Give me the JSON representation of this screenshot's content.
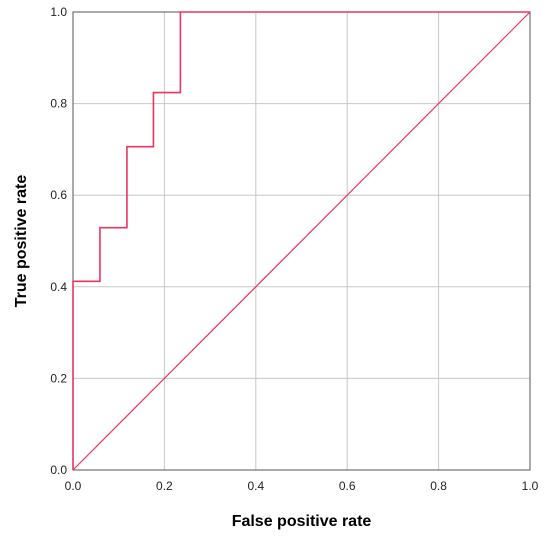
{
  "chart_data": {
    "type": "line",
    "xlabel": "False positive rate",
    "ylabel": "True positive rate",
    "xlim": [
      0,
      1
    ],
    "ylim": [
      0,
      1
    ],
    "x_ticks": [
      "0.0",
      "0.2",
      "0.4",
      "0.6",
      "0.8",
      "1.0"
    ],
    "y_ticks": [
      "0.0",
      "0.2",
      "0.4",
      "0.6",
      "0.8",
      "1.0"
    ],
    "grid": true,
    "series": [
      {
        "kind": "roc-step",
        "color": "#e8365d",
        "x": [
          0,
          0,
          0.059,
          0.059,
          0.118,
          0.118,
          0.176,
          0.176,
          0.235,
          0.235,
          1.0
        ],
        "y": [
          0,
          0.412,
          0.412,
          0.529,
          0.529,
          0.706,
          0.706,
          0.824,
          0.824,
          1.0,
          1.0
        ]
      },
      {
        "kind": "reference-diagonal",
        "color": "#e8365d",
        "x": [
          0,
          1
        ],
        "y": [
          0,
          1
        ]
      }
    ]
  }
}
